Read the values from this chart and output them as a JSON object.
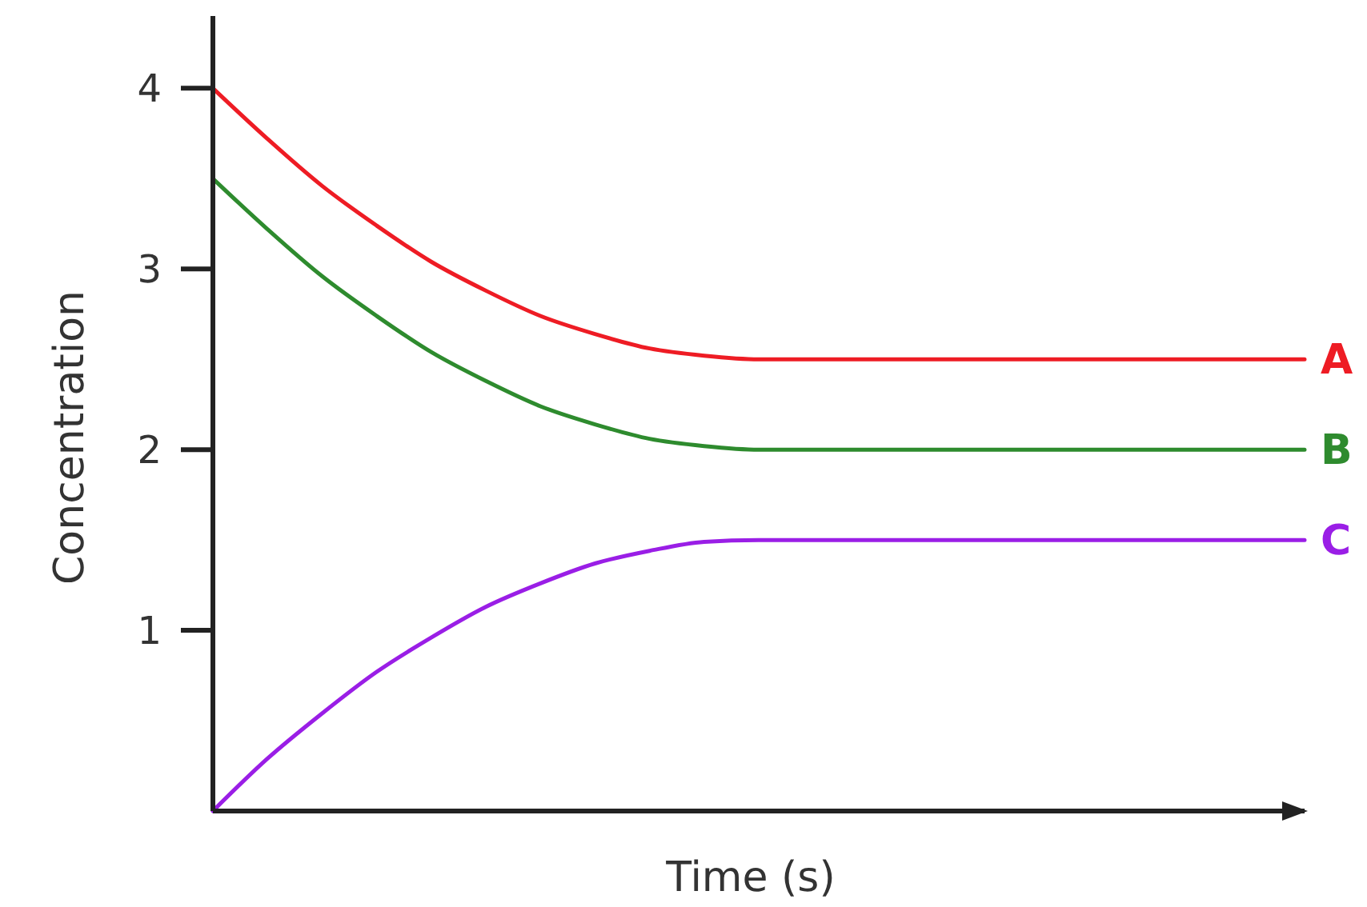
{
  "chart_data": {
    "type": "line",
    "xlabel": "Time (s)",
    "ylabel": "Concentration",
    "categories": [
      null,
      null,
      null,
      null,
      null,
      null,
      null,
      null,
      null,
      null,
      null,
      null,
      null,
      null,
      null,
      null,
      null,
      null,
      null,
      null,
      null
    ],
    "ylim": [
      0,
      4.4
    ],
    "yticks": [
      1,
      2,
      3,
      4
    ],
    "grid": false,
    "marker": "none",
    "line_style": "solid",
    "series": [
      {
        "name": "A",
        "color": "#ee1c24",
        "values": [
          4,
          3.72,
          3.46,
          3.24,
          3.04,
          2.88,
          2.74,
          2.64,
          2.56,
          2.52,
          2.5,
          2.5,
          2.5,
          2.5,
          2.5,
          2.5,
          2.5,
          2.5,
          2.5,
          2.5,
          2.5
        ]
      },
      {
        "name": "B",
        "color": "#2e8b2e",
        "values": [
          3.5,
          3.22,
          2.96,
          2.74,
          2.54,
          2.38,
          2.24,
          2.14,
          2.06,
          2.02,
          2,
          2,
          2,
          2,
          2,
          2,
          2,
          2,
          2,
          2,
          2
        ]
      },
      {
        "name": "C",
        "color": "#9a1ee6",
        "values": [
          0,
          0.29,
          0.54,
          0.77,
          0.96,
          1.13,
          1.26,
          1.37,
          1.44,
          1.49,
          1.5,
          1.5,
          1.5,
          1.5,
          1.5,
          1.5,
          1.5,
          1.5,
          1.5,
          1.5,
          1.5
        ]
      }
    ]
  }
}
